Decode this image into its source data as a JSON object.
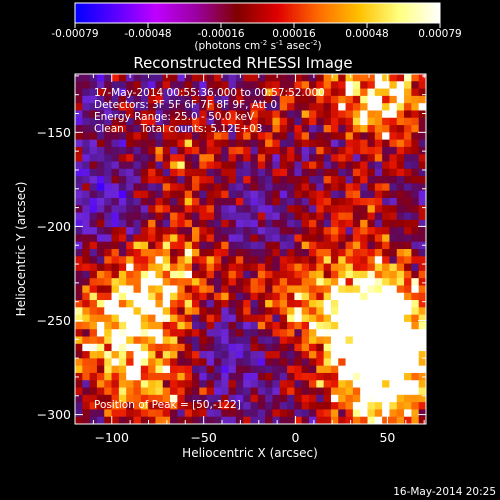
{
  "colorbar": {
    "min": -0.00079,
    "max": 0.00079,
    "ticks": [
      "-0.00079",
      "-0.00048",
      "-0.00016",
      "0.00016",
      "0.00048",
      "0.00079"
    ],
    "unit_parts": [
      "(photons cm",
      "-2",
      " s",
      "-1",
      " asec",
      "-2",
      ")"
    ],
    "colors": [
      "#0000ff",
      "#5a00ff",
      "#c000ff",
      "#9a00a0",
      "#800000",
      "#e00000",
      "#ff6a00",
      "#ffc000",
      "#ffff80",
      "#ffffff"
    ]
  },
  "chart_data": {
    "type": "heatmap",
    "title": "Reconstructed RHESSI Image",
    "xlabel": "Heliocentric X (arcsec)",
    "ylabel": "Heliocentric Y (arcsec)",
    "xlim": [
      -120,
      71
    ],
    "ylim": [
      -305,
      -119
    ],
    "xticks": [
      -100,
      -50,
      0,
      50
    ],
    "yticks": [
      -300,
      -250,
      -200,
      -150
    ],
    "annotations": [
      "17-May-2014 00:55:36.000 to 00:57:52.000",
      "Detectors: 3F 5F 6F 7F 8F 9F, Att 0",
      "Energy Range: 25.0 - 50.0 keV",
      "Clean     Total counts: 5.12E+03"
    ],
    "peak_label": "Position of Peak = [50,-122]",
    "peak": [
      50,
      -122
    ],
    "hot_regions": [
      {
        "x": 45,
        "y": -130,
        "level": 1.0
      },
      {
        "x": 35,
        "y": -245,
        "level": 0.95
      },
      {
        "x": 55,
        "y": -260,
        "level": 0.85
      },
      {
        "x": 45,
        "y": -290,
        "level": 0.8
      },
      {
        "x": -70,
        "y": -225,
        "level": 0.75
      },
      {
        "x": -100,
        "y": -250,
        "level": 0.7
      },
      {
        "x": -80,
        "y": -280,
        "level": 0.7
      },
      {
        "x": -15,
        "y": -235,
        "level": 0.6
      },
      {
        "x": 20,
        "y": -180,
        "level": 0.55
      },
      {
        "x": -5,
        "y": -145,
        "level": 0.5
      },
      {
        "x": -60,
        "y": -170,
        "level": 0.45
      }
    ],
    "cold_regions": [
      {
        "x": 15,
        "y": -160,
        "level": 0.6
      },
      {
        "x": -40,
        "y": -260,
        "level": 0.5
      },
      {
        "x": -20,
        "y": -200,
        "level": 0.45
      },
      {
        "x": -100,
        "y": -190,
        "level": 0.4
      }
    ]
  },
  "footer": {
    "timestamp": "16-May-2014 20:25"
  }
}
